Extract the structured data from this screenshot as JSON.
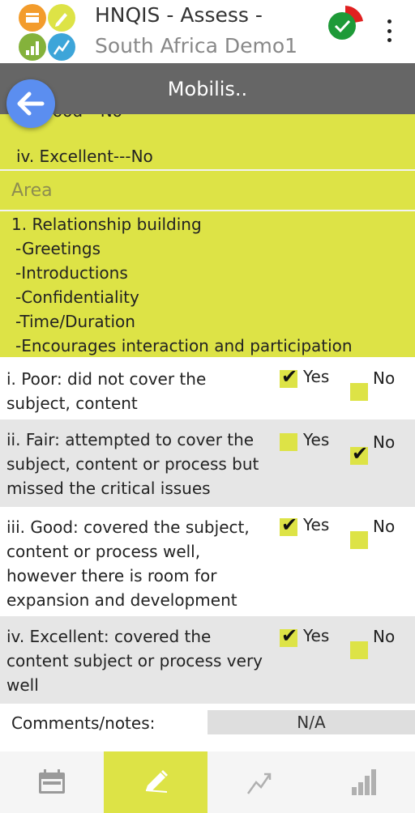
{
  "app": {
    "title_line1": "HNQIS - Assess -",
    "title_line2": "South Africa Demo1"
  },
  "header": {
    "title": "Mobilis.."
  },
  "partial": {
    "prev_line": "iii. Good---No",
    "line": "iv. Excellent---No"
  },
  "area": {
    "label": "Area"
  },
  "topic": {
    "lines": [
      "1. Relationship building",
      "-Greetings",
      "-Introductions",
      "-Confidentiality",
      "-Time/Duration",
      "-Encourages interaction and participation"
    ]
  },
  "questions": [
    {
      "text": "i. Poor: did not cover the subject, content",
      "yes_label": "Yes",
      "no_label": "No",
      "answer": "yes"
    },
    {
      "text": "ii. Fair: attempted to cover the subject, content or process but missed the critical issues",
      "yes_label": "Yes",
      "no_label": "No",
      "answer": "no"
    },
    {
      "text": "iii. Good: covered the subject, content or process well, however there is room for expansion and development",
      "yes_label": "Yes",
      "no_label": "No",
      "answer": "yes"
    },
    {
      "text": "iv. Excellent: covered the content subject or process very well",
      "yes_label": "Yes",
      "no_label": "No",
      "answer": "yes"
    }
  ],
  "comments": {
    "label": "Comments/notes:",
    "value": "N/A"
  },
  "bottom_nav": {
    "tabs": [
      {
        "icon": "calendar-icon",
        "active": false
      },
      {
        "icon": "pencil-icon",
        "active": true
      },
      {
        "icon": "trend-icon",
        "active": false
      },
      {
        "icon": "bar-chart-icon",
        "active": false
      }
    ]
  },
  "colors": {
    "accent": "#dde346",
    "header_grey": "#666666",
    "back_button": "#5b8ef0",
    "row_alt": "#e6e6e6",
    "status_green": "#1e9a38",
    "status_red": "#e02020"
  }
}
